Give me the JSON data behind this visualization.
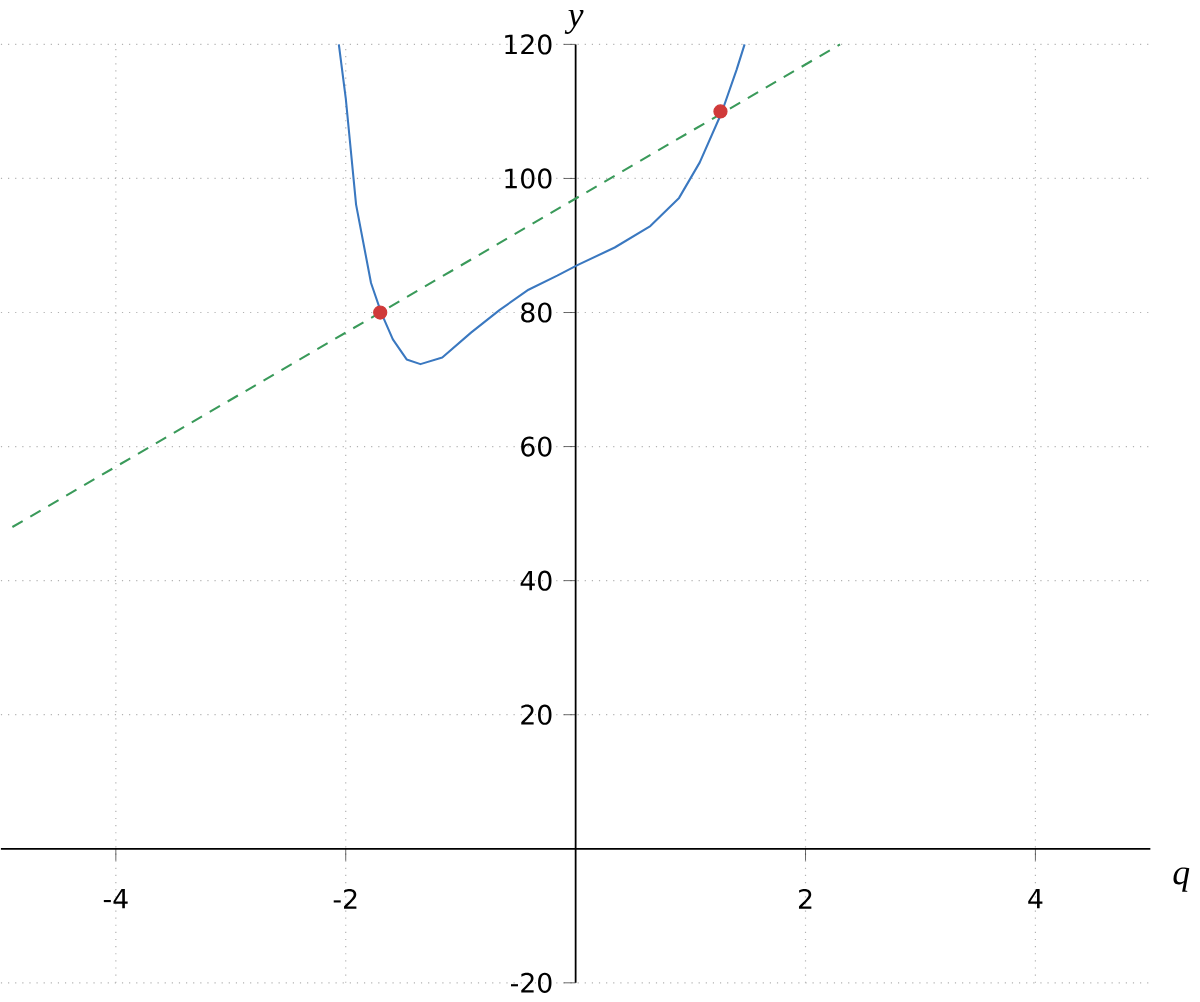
{
  "chart_data": {
    "type": "line",
    "xlabel": "q",
    "ylabel": "y",
    "xlim": [
      -5,
      5
    ],
    "ylim": [
      -20,
      120
    ],
    "xticks": [
      -4,
      -2,
      2,
      4
    ],
    "yticks": [
      -20,
      20,
      40,
      60,
      80,
      100,
      120
    ],
    "grid": true,
    "series": [
      {
        "color": "#3a78c0",
        "line_style": "solid",
        "marker": "none",
        "x": [
          -2.06,
          -2.0,
          -1.91,
          -1.78,
          -1.69,
          -1.59,
          -1.47,
          -1.35,
          -1.16,
          -0.91,
          -0.66,
          -0.41,
          -0.16,
          0.02,
          0.34,
          0.65,
          0.9,
          1.08,
          1.27,
          1.4,
          1.47
        ],
        "values": [
          120,
          112,
          96.1,
          84.4,
          79.9,
          76,
          73,
          72.3,
          73.3,
          77,
          80.4,
          83.4,
          85.5,
          87.1,
          89.7,
          92.9,
          97.1,
          102.4,
          109.8,
          116.2,
          120
        ]
      },
      {
        "color": "#3a9a5a",
        "line_style": "dashed",
        "marker": "none",
        "x": [
          -4.9,
          2.3
        ],
        "values": [
          48,
          120
        ]
      },
      {
        "type": "scatter",
        "color": "#d03a3a",
        "marker": "circle",
        "x": [
          -1.7,
          1.26
        ],
        "values": [
          80,
          110
        ]
      }
    ]
  }
}
